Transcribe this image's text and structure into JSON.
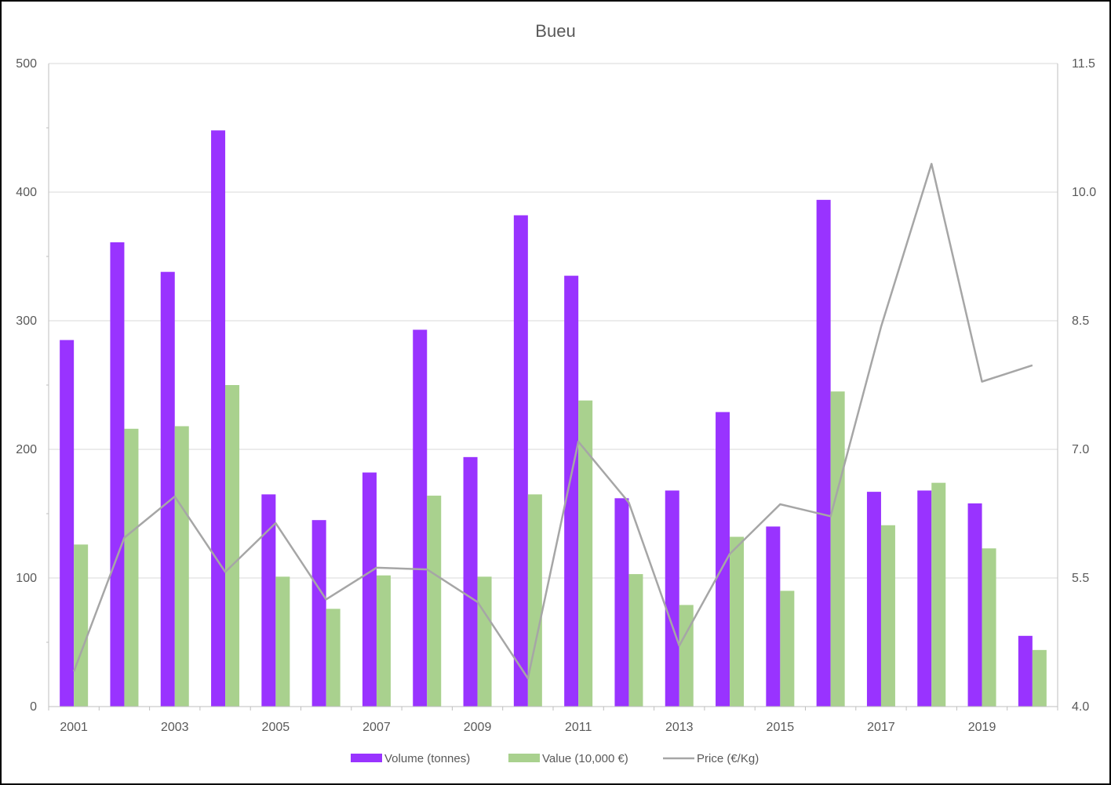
{
  "chart_data": {
    "type": "bar",
    "title": "Bueu",
    "categories": [
      "2001",
      "2002",
      "2003",
      "2004",
      "2005",
      "2006",
      "2007",
      "2008",
      "2009",
      "2010",
      "2011",
      "2012",
      "2013",
      "2014",
      "2015",
      "2016",
      "2017",
      "2018",
      "2019",
      "2020"
    ],
    "x_tick_labels": [
      "2001",
      "2003",
      "2005",
      "2007",
      "2009",
      "2011",
      "2013",
      "2015",
      "2017",
      "2019"
    ],
    "series": [
      {
        "name": "Volume (tonnes)",
        "kind": "bar",
        "axis": "left",
        "color": "#9933ff",
        "values": [
          285,
          361,
          338,
          448,
          165,
          145,
          182,
          293,
          194,
          382,
          335,
          162,
          168,
          229,
          140,
          394,
          167,
          168,
          158,
          55
        ]
      },
      {
        "name": "Value (10,000 €)",
        "kind": "bar",
        "axis": "left",
        "color": "#a9d18e",
        "values": [
          126,
          216,
          218,
          250,
          101,
          76,
          102,
          164,
          101,
          165,
          238,
          103,
          79,
          132,
          90,
          245,
          141,
          174,
          123,
          44
        ]
      },
      {
        "name": "Price (€/Kg)",
        "kind": "line",
        "axis": "right",
        "color": "#a6a6a6",
        "values": [
          4.41,
          5.97,
          6.45,
          5.57,
          6.14,
          5.25,
          5.62,
          5.6,
          5.22,
          4.33,
          7.09,
          6.38,
          4.71,
          5.78,
          6.36,
          6.22,
          8.43,
          10.33,
          7.79,
          7.98
        ]
      }
    ],
    "y_left": {
      "min": 0,
      "max": 500,
      "ticks": [
        0,
        100,
        200,
        300,
        400,
        500
      ]
    },
    "y_right": {
      "min": 4.0,
      "max": 11.5,
      "ticks": [
        "4.0",
        "5.5",
        "7.0",
        "8.5",
        "10.0",
        "11.5"
      ]
    },
    "grid": true,
    "legend_position": "bottom"
  }
}
